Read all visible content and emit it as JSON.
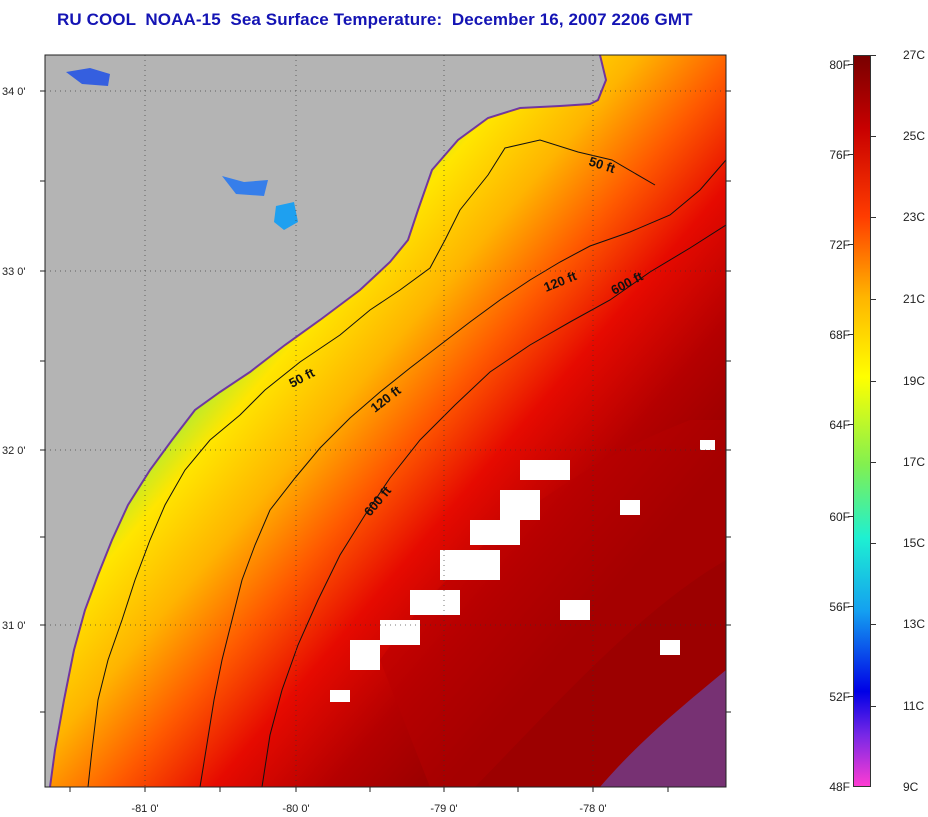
{
  "title": "RU COOL  NOAA-15  Sea Surface Temperature:  December 16, 2007 2206 GMT",
  "colors": {
    "land": "#b4b4b4",
    "title": "#1414b4",
    "scale": [
      "#ff3cd2",
      "#b43cf0",
      "#5a28e6",
      "#0000e6",
      "#0a50f0",
      "#14a0f0",
      "#1ee6f0",
      "#3cf0b4",
      "#82f050",
      "#d2f01e",
      "#ffe600",
      "#ffb400",
      "#ff7800",
      "#ff3c00",
      "#e60a00",
      "#b40000",
      "#8c0000",
      "#640000"
    ]
  },
  "axes": {
    "x_ticks": [
      "-81 0'",
      "-80 0'",
      "-79 0'",
      "-78 0'"
    ],
    "y_ticks": [
      "34 0'",
      "33 0'",
      "32 0'",
      "31 0'"
    ]
  },
  "contours": {
    "c50_top": "50 ft",
    "c50_mid": "50 ft",
    "c120_top": "120 ft",
    "c120_mid": "120 ft",
    "c600_top": "600 ft",
    "c600_mid": "600 ft"
  },
  "colorbar": {
    "fahrenheit": [
      "80F",
      "76F",
      "72F",
      "68F",
      "64F",
      "60F",
      "56F",
      "52F",
      "48F"
    ],
    "celsius": [
      "27C",
      "25C",
      "23C",
      "21C",
      "19C",
      "17C",
      "15C",
      "13C",
      "11C",
      "9C"
    ]
  }
}
